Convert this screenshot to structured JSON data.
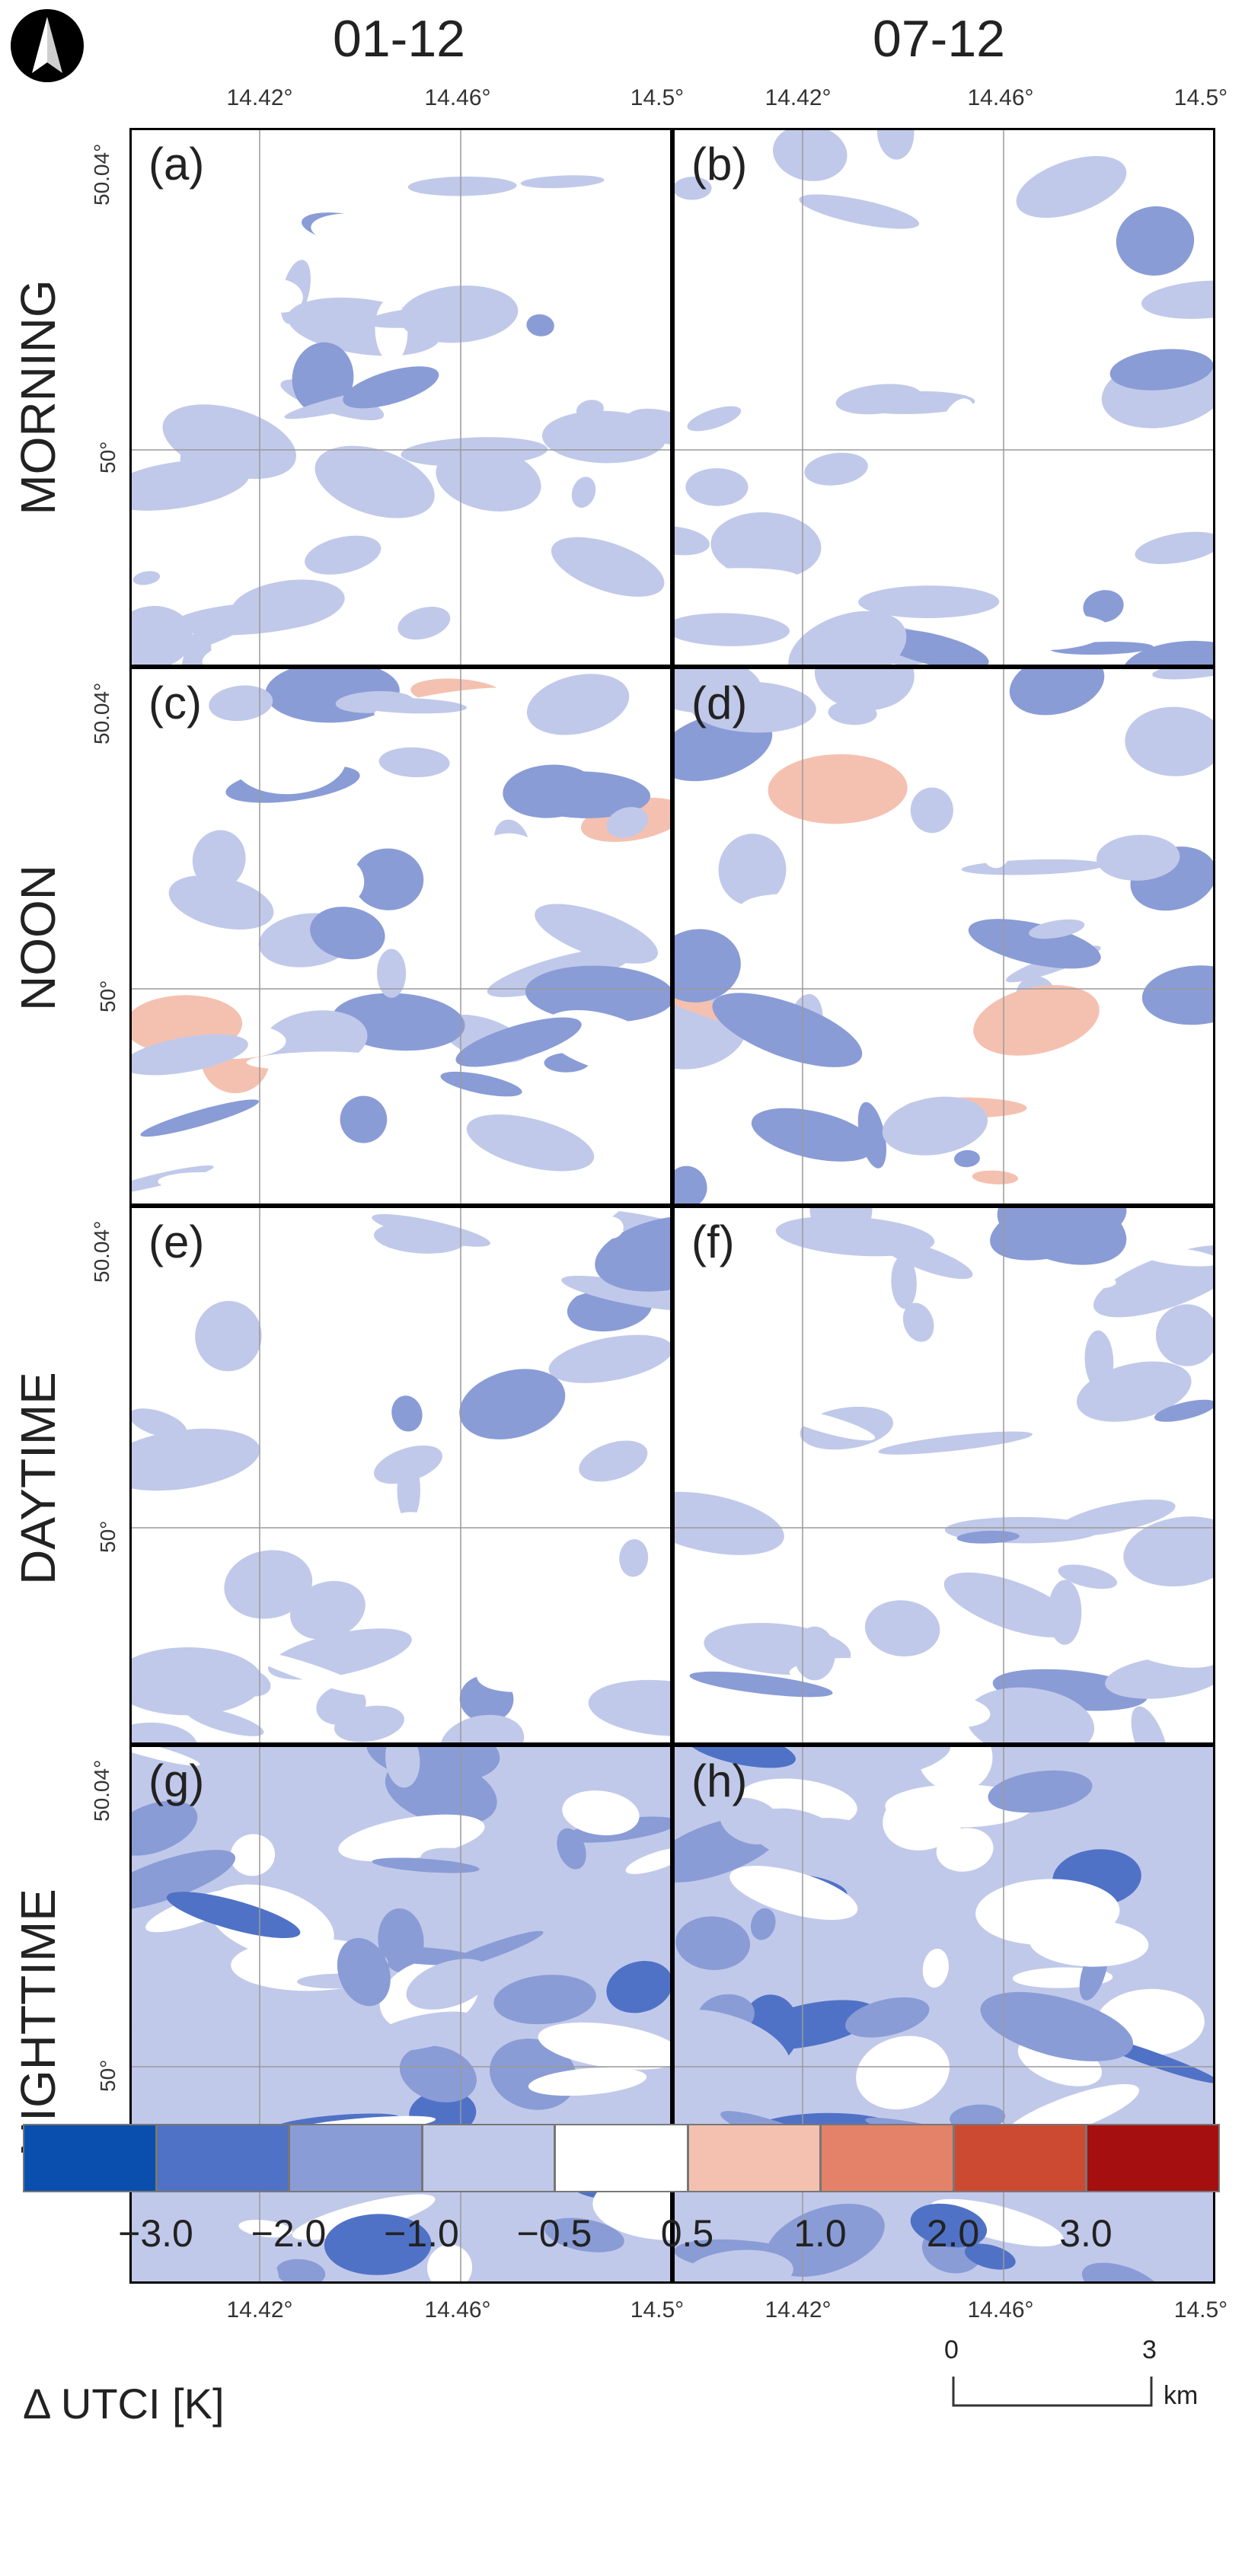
{
  "columns": [
    {
      "title": "01-12"
    },
    {
      "title": "07-12"
    }
  ],
  "rows": [
    {
      "title": "MORNING",
      "labels": [
        "(a)",
        "(b)"
      ]
    },
    {
      "title": "NOON",
      "labels": [
        "(c)",
        "(d)"
      ]
    },
    {
      "title": "DAYTIME",
      "labels": [
        "(e)",
        "(f)"
      ]
    },
    {
      "title": "NIGHTTIME",
      "labels": [
        "(g)",
        "(h)"
      ]
    }
  ],
  "axes": {
    "lon_ticks": [
      "14.42°",
      "14.46°",
      "14.5°"
    ],
    "lat_top": "50.04°",
    "lat_mid": "50°"
  },
  "legend": {
    "title": "Δ UTCI [K]",
    "colors": [
      "#0a4fae",
      "#5072c6",
      "#8a9cd6",
      "#c1c9ea",
      "#ffffff",
      "#f4c1b0",
      "#e38268",
      "#cd4a32",
      "#a50f0f"
    ],
    "ticks": [
      "−3.0",
      "−2.0",
      "−1.0",
      "−0.5",
      "0.5",
      "1.0",
      "2.0",
      "3.0"
    ]
  },
  "scale_bar": {
    "start": "0",
    "end": "3",
    "unit": "km"
  },
  "north_arrow": "north-arrow-icon"
}
